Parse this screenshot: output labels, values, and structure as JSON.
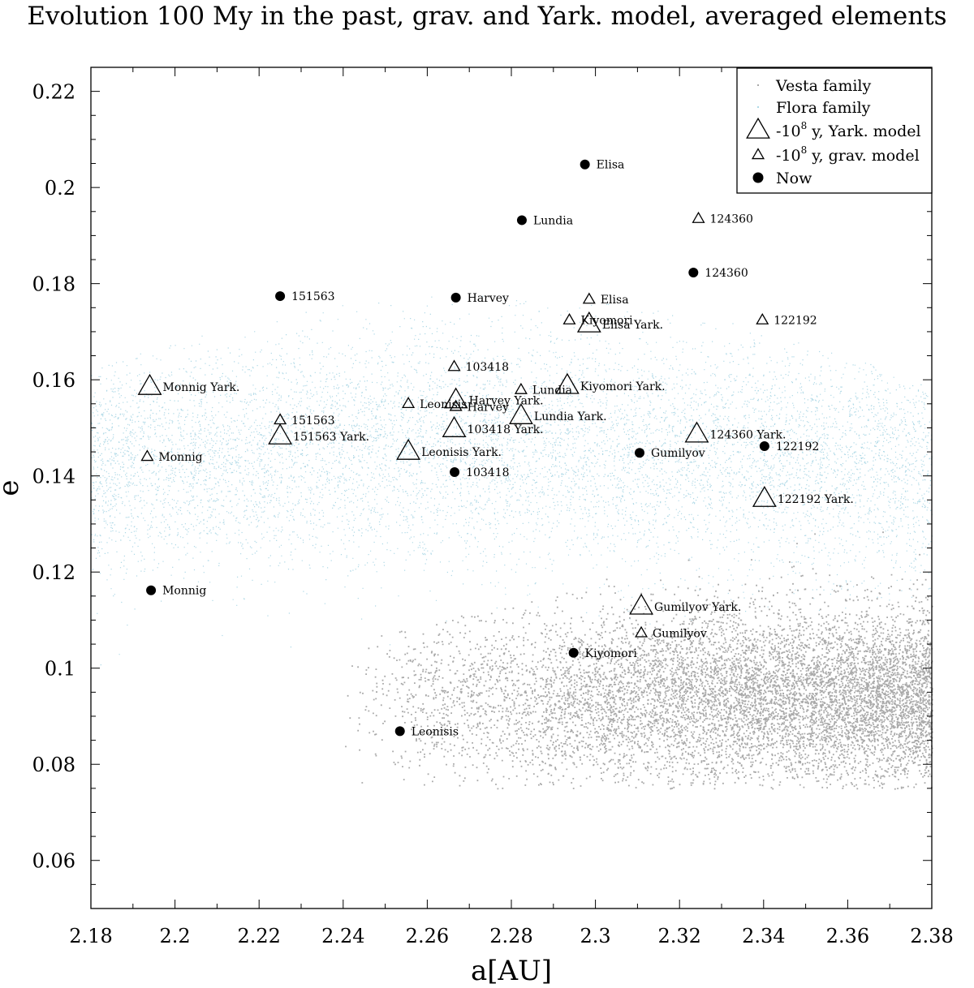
{
  "chart_data": {
    "type": "scatter",
    "title": "Evolution 100 My in the past, grav. and Yark. model, averaged elements",
    "xlabel": "a[AU]",
    "ylabel": "e",
    "xlim": [
      2.18,
      2.38
    ],
    "ylim": [
      0.05,
      0.225
    ],
    "x_ticks": [
      "2.18",
      "2.2",
      "2.22",
      "2.24",
      "2.26",
      "2.28",
      "2.3",
      "2.32",
      "2.34",
      "2.36",
      "2.38"
    ],
    "y_ticks": [
      "0.06",
      "0.08",
      "0.1",
      "0.12",
      "0.14",
      "0.16",
      "0.18",
      "0.2",
      "0.22"
    ],
    "legend_position": "top-right",
    "legend": [
      {
        "label": "Vesta family",
        "marker": "dot"
      },
      {
        "label": "Flora family",
        "marker": "dot"
      },
      {
        "label_prefix": "-10",
        "label_sup": "8",
        "label_suffix": " y, Yark. model",
        "marker": "large-triangle"
      },
      {
        "label_prefix": "-10",
        "label_sup": "8",
        "label_suffix": " y, grav. model",
        "marker": "small-triangle"
      },
      {
        "label": "Now",
        "marker": "filled-circle"
      }
    ],
    "families": [
      {
        "name": "Vesta family",
        "color": "#a9a9a9",
        "a_range": [
          2.24,
          2.38
        ],
        "e_center": 0.094,
        "e_spread": 0.009
      },
      {
        "name": "Flora family",
        "color": "#add8e6",
        "a_range": [
          2.18,
          2.38
        ],
        "e_center": 0.142,
        "e_spread": 0.012
      }
    ],
    "series": [
      {
        "name": "Now",
        "marker": "filled-circle",
        "points": [
          {
            "label": "Elisa",
            "a": 2.2975,
            "e": 0.2048
          },
          {
            "label": "Lundia",
            "a": 2.2825,
            "e": 0.1932
          },
          {
            "label": "124360",
            "a": 2.3233,
            "e": 0.1823
          },
          {
            "label": "151563",
            "a": 2.225,
            "e": 0.1774
          },
          {
            "label": "Harvey",
            "a": 2.2668,
            "e": 0.1771
          },
          {
            "label": "Gumilyov",
            "a": 2.3105,
            "e": 0.1448
          },
          {
            "label": "122192",
            "a": 2.3402,
            "e": 0.1462
          },
          {
            "label": "103418",
            "a": 2.2665,
            "e": 0.1408
          },
          {
            "label": "Monnig",
            "a": 2.1943,
            "e": 0.1162
          },
          {
            "label": "Kiyomori",
            "a": 2.2948,
            "e": 0.1032
          },
          {
            "label": "Leonisis",
            "a": 2.2535,
            "e": 0.0869
          }
        ]
      },
      {
        "name": "-10^8 y, grav. model",
        "marker": "small-triangle",
        "points": [
          {
            "label": "124360",
            "a": 2.3245,
            "e": 0.1935
          },
          {
            "label": "Elisa",
            "a": 2.2985,
            "e": 0.1767
          },
          {
            "label": "Kiyomori",
            "a": 2.2938,
            "e": 0.1724
          },
          {
            "label": "122192",
            "a": 2.3397,
            "e": 0.1724
          },
          {
            "label": "103418",
            "a": 2.2664,
            "e": 0.1627
          },
          {
            "label": "Lundia",
            "a": 2.2823,
            "e": 0.1579
          },
          {
            "label": "Leonisis",
            "a": 2.2555,
            "e": 0.155
          },
          {
            "label": "Harvey",
            "a": 2.2668,
            "e": 0.1544
          },
          {
            "label": "151563",
            "a": 2.225,
            "e": 0.1516
          },
          {
            "label": "Monnig",
            "a": 2.1934,
            "e": 0.144
          },
          {
            "label": "Gumilyov",
            "a": 2.3109,
            "e": 0.1073
          }
        ]
      },
      {
        "name": "-10^8 y, Yark. model",
        "marker": "large-triangle",
        "points": [
          {
            "label": "Elisa Yark.",
            "a": 2.2985,
            "e": 0.1715
          },
          {
            "label": "Kiyomori Yark.",
            "a": 2.2933,
            "e": 0.1587
          },
          {
            "label": "Monnig Yark.",
            "a": 2.194,
            "e": 0.1585
          },
          {
            "label": "Harvey Yark.",
            "a": 2.2668,
            "e": 0.1557
          },
          {
            "label": "Lundia Yark.",
            "a": 2.2823,
            "e": 0.1524
          },
          {
            "label": "103418 Yark.",
            "a": 2.2664,
            "e": 0.1497
          },
          {
            "label": "124360 Yark.",
            "a": 2.3241,
            "e": 0.1486
          },
          {
            "label": "151563 Yark.",
            "a": 2.225,
            "e": 0.1482
          },
          {
            "label": "Leonisis Yark.",
            "a": 2.2555,
            "e": 0.145
          },
          {
            "label": "122192 Yark.",
            "a": 2.3402,
            "e": 0.1352
          },
          {
            "label": "Gumilyov Yark.",
            "a": 2.3109,
            "e": 0.1128
          }
        ]
      }
    ]
  }
}
